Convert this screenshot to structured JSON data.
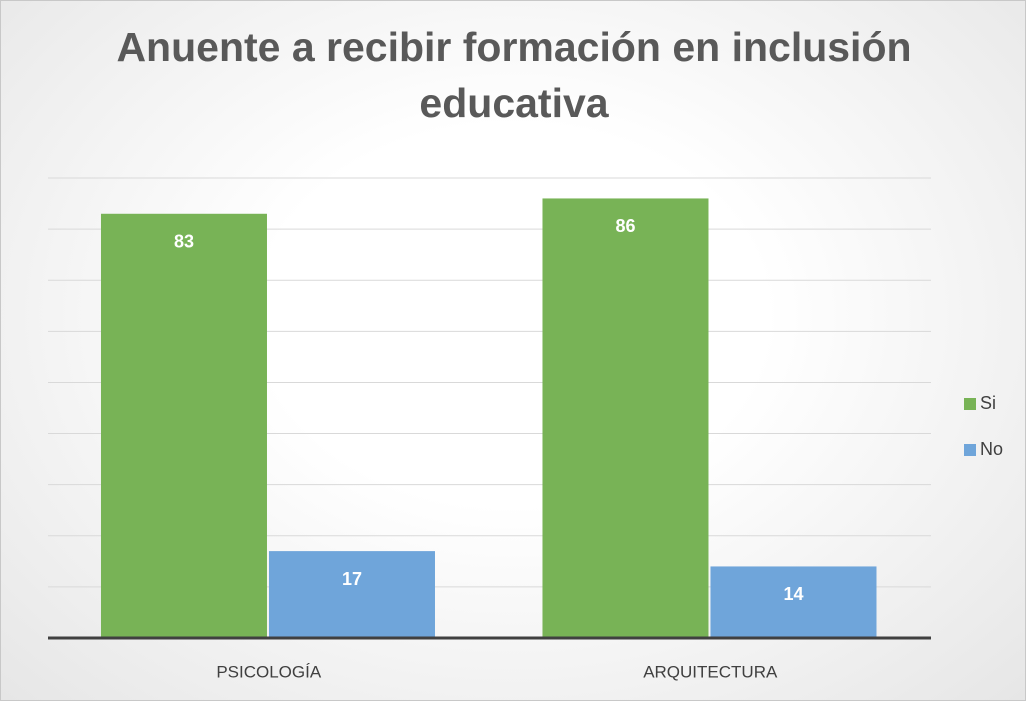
{
  "chart_data": {
    "type": "bar",
    "title": "Anuente a recibir formación en inclusión educativa",
    "categories": [
      "PSICOLOGÍA",
      "ARQUITECTURA"
    ],
    "series": [
      {
        "name": "Si",
        "color": "#78b356",
        "values": [
          83,
          86
        ]
      },
      {
        "name": "No",
        "color": "#6fa5da",
        "values": [
          17,
          14
        ]
      }
    ],
    "ylim": [
      0,
      90
    ],
    "yticks": [
      0,
      10,
      20,
      30,
      40,
      50,
      60,
      70,
      80,
      90
    ],
    "grid": true,
    "legend": "right"
  }
}
